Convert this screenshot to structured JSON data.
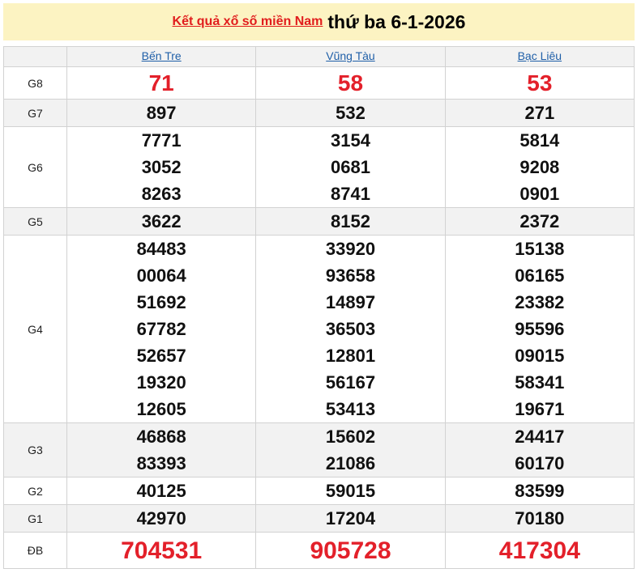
{
  "title": {
    "link": "Kết quả xổ số miền Nam",
    "date": "thứ ba 6-1-2026"
  },
  "provinces": [
    "Bến Tre",
    "Vũng Tàu",
    "Bạc Liêu"
  ],
  "colors": {
    "accent_red": "#e3202a",
    "link_blue": "#1f5fa8",
    "title_bg": "#fcf3c2"
  },
  "rows": [
    {
      "label": "G8",
      "style": "red",
      "values": [
        [
          "71"
        ],
        [
          "58"
        ],
        [
          "53"
        ]
      ]
    },
    {
      "label": "G7",
      "values": [
        [
          "897"
        ],
        [
          "532"
        ],
        [
          "271"
        ]
      ]
    },
    {
      "label": "G6",
      "values": [
        [
          "7771",
          "3052",
          "8263"
        ],
        [
          "3154",
          "0681",
          "8741"
        ],
        [
          "5814",
          "9208",
          "0901"
        ]
      ]
    },
    {
      "label": "G5",
      "values": [
        [
          "3622"
        ],
        [
          "8152"
        ],
        [
          "2372"
        ]
      ]
    },
    {
      "label": "G4",
      "values": [
        [
          "84483",
          "00064",
          "51692",
          "67782",
          "52657",
          "19320",
          "12605"
        ],
        [
          "33920",
          "93658",
          "14897",
          "36503",
          "12801",
          "56167",
          "53413"
        ],
        [
          "15138",
          "06165",
          "23382",
          "95596",
          "09015",
          "58341",
          "19671"
        ]
      ]
    },
    {
      "label": "G3",
      "values": [
        [
          "46868",
          "83393"
        ],
        [
          "15602",
          "21086"
        ],
        [
          "24417",
          "60170"
        ]
      ]
    },
    {
      "label": "G2",
      "values": [
        [
          "40125"
        ],
        [
          "59015"
        ],
        [
          "83599"
        ]
      ]
    },
    {
      "label": "G1",
      "values": [
        [
          "42970"
        ],
        [
          "17204"
        ],
        [
          "70180"
        ]
      ]
    },
    {
      "label": "ĐB",
      "style": "db",
      "values": [
        [
          "704531"
        ],
        [
          "905728"
        ],
        [
          "417304"
        ]
      ]
    }
  ]
}
